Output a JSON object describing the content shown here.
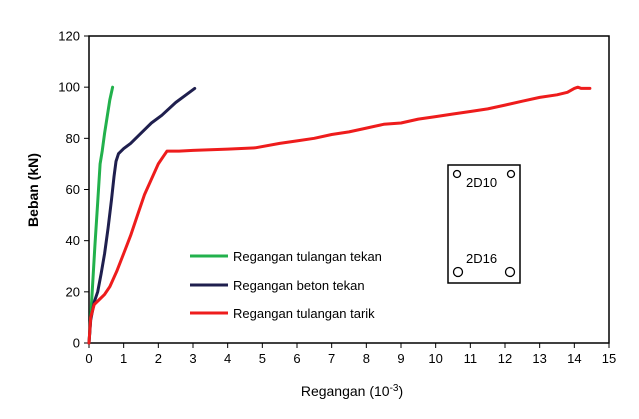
{
  "chart_data": {
    "type": "line",
    "title": "",
    "xlabel": "Regangan (10",
    "xlabel_sup": "-3",
    "xlabel_close": ")",
    "ylabel": "Beban (kN)",
    "xlim": [
      0,
      15
    ],
    "ylim": [
      0,
      120
    ],
    "xticks": [
      0,
      1,
      2,
      3,
      4,
      5,
      6,
      7,
      8,
      9,
      10,
      11,
      12,
      13,
      14,
      15
    ],
    "yticks": [
      0,
      20,
      40,
      60,
      80,
      100,
      120
    ],
    "grid": false,
    "legend_position": "center-left",
    "series": [
      {
        "name": "Regangan tulangan tekan",
        "color": "#22b14c",
        "points": [
          [
            0,
            0
          ],
          [
            0.05,
            10
          ],
          [
            0.1,
            22
          ],
          [
            0.17,
            38
          ],
          [
            0.25,
            55
          ],
          [
            0.32,
            70
          ],
          [
            0.38,
            75
          ],
          [
            0.45,
            82
          ],
          [
            0.52,
            88
          ],
          [
            0.6,
            95
          ],
          [
            0.68,
            100
          ]
        ]
      },
      {
        "name": "Regangan beton tekan",
        "color": "#1f1f4e",
        "points": [
          [
            0,
            0
          ],
          [
            0.05,
            9
          ],
          [
            0.15,
            16
          ],
          [
            0.25,
            20
          ],
          [
            0.35,
            27
          ],
          [
            0.45,
            35
          ],
          [
            0.55,
            45
          ],
          [
            0.65,
            56
          ],
          [
            0.72,
            65
          ],
          [
            0.78,
            71
          ],
          [
            0.85,
            74
          ],
          [
            1.0,
            76
          ],
          [
            1.2,
            78
          ],
          [
            1.5,
            82
          ],
          [
            1.8,
            86
          ],
          [
            2.1,
            89
          ],
          [
            2.5,
            94
          ],
          [
            2.8,
            97
          ],
          [
            3.05,
            99.5
          ]
        ]
      },
      {
        "name": "Regangan tulangan tarik",
        "color": "#ee1c1c",
        "points": [
          [
            0,
            0
          ],
          [
            0.05,
            10
          ],
          [
            0.15,
            15
          ],
          [
            0.3,
            17
          ],
          [
            0.45,
            19
          ],
          [
            0.6,
            22
          ],
          [
            0.8,
            28
          ],
          [
            1.0,
            35
          ],
          [
            1.2,
            42
          ],
          [
            1.4,
            50
          ],
          [
            1.6,
            58
          ],
          [
            1.8,
            64
          ],
          [
            2.0,
            70
          ],
          [
            2.15,
            73
          ],
          [
            2.25,
            75
          ],
          [
            2.6,
            75
          ],
          [
            3,
            75.3
          ],
          [
            4,
            75.8
          ],
          [
            4.8,
            76.3
          ],
          [
            5.5,
            78
          ],
          [
            6,
            79
          ],
          [
            6.5,
            80
          ],
          [
            7,
            81.5
          ],
          [
            7.5,
            82.5
          ],
          [
            8,
            84
          ],
          [
            8.5,
            85.5
          ],
          [
            9,
            86
          ],
          [
            9.5,
            87.5
          ],
          [
            10,
            88.5
          ],
          [
            10.5,
            89.5
          ],
          [
            11,
            90.5
          ],
          [
            11.5,
            91.5
          ],
          [
            12,
            93
          ],
          [
            12.5,
            94.5
          ],
          [
            13,
            96
          ],
          [
            13.5,
            97
          ],
          [
            13.8,
            98
          ],
          [
            14.0,
            99.5
          ],
          [
            14.1,
            100
          ],
          [
            14.2,
            99.5
          ],
          [
            14.3,
            99.5
          ],
          [
            14.45,
            99.5
          ]
        ]
      }
    ],
    "inset": {
      "top_label": "2D10",
      "bottom_label": "2D16"
    }
  }
}
